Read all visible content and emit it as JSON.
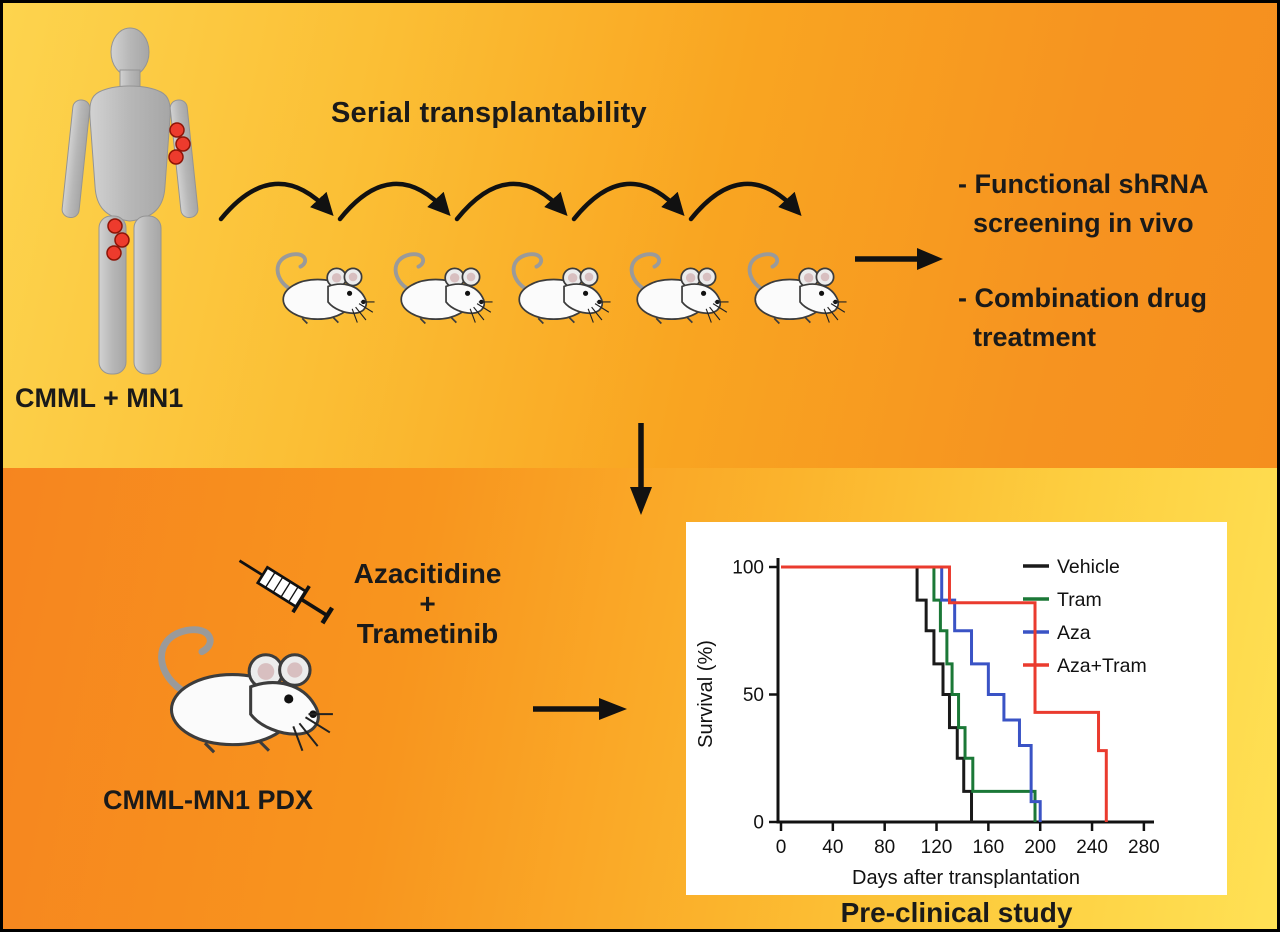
{
  "top": {
    "title": "Serial transplantability",
    "patient_label": "CMML + MN1",
    "outcome_1": "- Functional shRNA\n  screening in vivo",
    "outcome_2": "- Combination drug\n  treatment"
  },
  "bottom": {
    "treatment": "Azacitidine\n+\nTrametinib",
    "pdx_label": "CMML-MN1 PDX",
    "study_label": "Pre-clinical study"
  },
  "palette": {
    "top_gradient": [
      "#fdd44e",
      "#f58f1e"
    ],
    "bottom_gradient": [
      "#f6851f",
      "#ffe155"
    ],
    "tumor_dot": "#ed3b2d"
  },
  "chart_data": {
    "type": "line",
    "subtype": "kaplan_meier_step",
    "xlabel": "Days after transplantation",
    "ylabel": "Survival (%)",
    "xlim": [
      0,
      280
    ],
    "ylim": [
      0,
      100
    ],
    "xticks": [
      0,
      40,
      80,
      120,
      160,
      200,
      240,
      280
    ],
    "yticks": [
      0,
      50,
      100
    ],
    "grid": false,
    "legend_position": "top-right",
    "series": [
      {
        "name": "Vehicle",
        "color": "#1a1a1a",
        "events": [
          [
            0,
            100
          ],
          [
            105,
            87
          ],
          [
            112,
            75
          ],
          [
            118,
            62
          ],
          [
            125,
            50
          ],
          [
            130,
            37
          ],
          [
            136,
            25
          ],
          [
            141,
            12
          ],
          [
            147,
            0
          ]
        ]
      },
      {
        "name": "Tram",
        "color": "#1b7837",
        "events": [
          [
            0,
            100
          ],
          [
            118,
            87
          ],
          [
            123,
            75
          ],
          [
            128,
            62
          ],
          [
            132,
            50
          ],
          [
            137,
            37
          ],
          [
            142,
            25
          ],
          [
            148,
            12
          ],
          [
            196,
            0
          ]
        ]
      },
      {
        "name": "Aza",
        "color": "#3a53c5",
        "events": [
          [
            0,
            100
          ],
          [
            124,
            87
          ],
          [
            134,
            75
          ],
          [
            147,
            62
          ],
          [
            160,
            50
          ],
          [
            172,
            40
          ],
          [
            184,
            30
          ],
          [
            193,
            8
          ],
          [
            200,
            0
          ]
        ]
      },
      {
        "name": "Aza+Tram",
        "color": "#ea3b2e",
        "events": [
          [
            0,
            100
          ],
          [
            130,
            86
          ],
          [
            196,
            43
          ],
          [
            245,
            28
          ],
          [
            251,
            0
          ]
        ]
      }
    ]
  }
}
